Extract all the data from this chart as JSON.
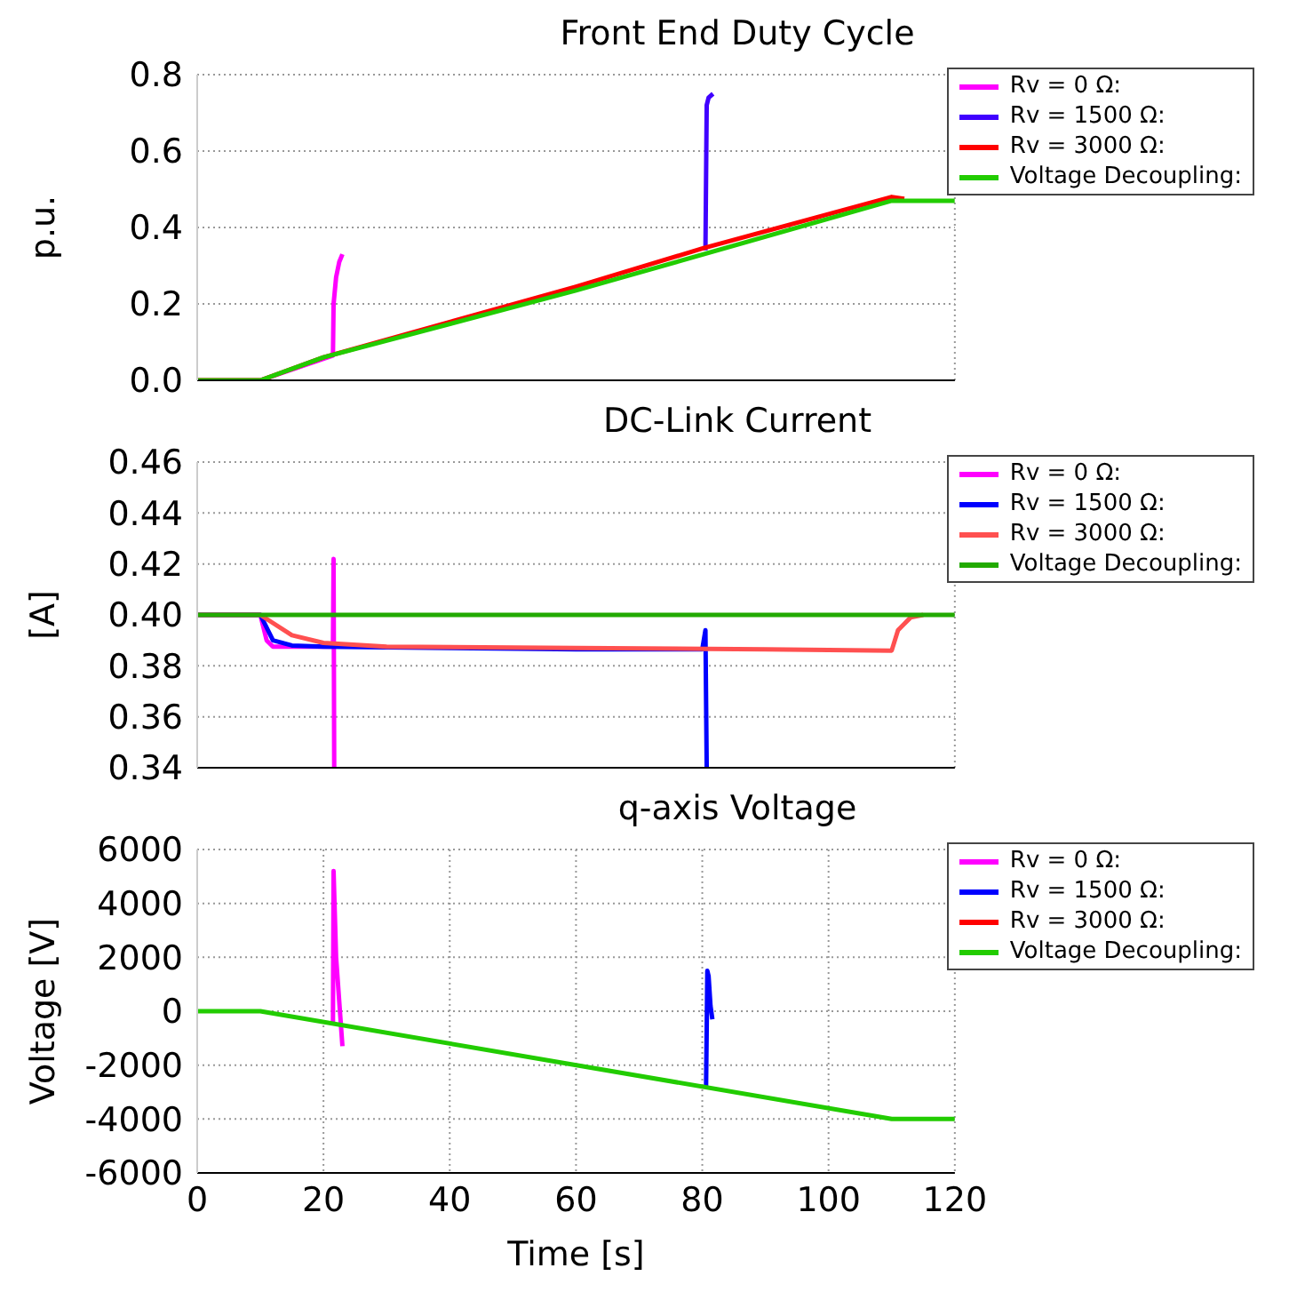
{
  "chart_data": [
    {
      "type": "line",
      "title": "Front End Duty Cycle",
      "ylabel": "p.u.",
      "xlim": [
        0,
        120
      ],
      "xticks": [
        0,
        20,
        40,
        60,
        80,
        100,
        120
      ],
      "ylim": [
        0,
        0.8
      ],
      "yticks": [
        {
          "value": 0,
          "label": "0.0"
        },
        {
          "value": 0.2,
          "label": "0.2"
        },
        {
          "value": 0.4,
          "label": "0.4"
        },
        {
          "value": 0.6,
          "label": "0.6"
        },
        {
          "value": 0.8,
          "label": "0.8"
        }
      ],
      "tick_labels": "y",
      "grid": true,
      "legend": "top right",
      "line_style": "solid",
      "marker": "none",
      "series": [
        {
          "name": "Rv = 0 Ω:",
          "color": "#ff00ff",
          "x": [
            0,
            10,
            21.5,
            21.6,
            22,
            22.5,
            23
          ],
          "values": [
            0,
            0,
            0.065,
            0.2,
            0.27,
            0.31,
            0.33
          ]
        },
        {
          "name": "Rv = 1500 Ω:",
          "color": "#4000ff",
          "x": [
            80.5,
            80.7,
            81,
            81.7
          ],
          "values": [
            0.34,
            0.72,
            0.74,
            0.75
          ]
        },
        {
          "name": "Rv = 3000 Ω:",
          "color": "#ff0000",
          "x": [
            0,
            10,
            20,
            60,
            80,
            110,
            112
          ],
          "values": [
            0,
            0,
            0.06,
            0.245,
            0.345,
            0.48,
            0.475
          ]
        },
        {
          "name": "Voltage Decoupling:",
          "color": "#22cc00",
          "x": [
            0,
            10,
            20,
            60,
            110,
            120
          ],
          "values": [
            0,
            0,
            0.06,
            0.235,
            0.47,
            0.47
          ]
        }
      ]
    },
    {
      "type": "line",
      "title": "DC-Link Current",
      "ylabel": "[A]",
      "xlim": [
        0,
        120
      ],
      "xticks": [
        0,
        20,
        40,
        60,
        80,
        100,
        120
      ],
      "ylim": [
        0.34,
        0.46
      ],
      "yticks": [
        0.34,
        0.36,
        0.38,
        {
          "value": 0.4,
          "label": "0.40"
        },
        0.42,
        0.44,
        0.46
      ],
      "tick_labels": "y",
      "grid": true,
      "legend": "top right",
      "line_style": "solid",
      "marker": "none",
      "series": [
        {
          "name": "Rv = 0 Ω:",
          "color": "#ff00ff",
          "x": [
            0,
            10,
            11,
            12,
            15,
            20,
            21.5,
            21.6,
            21.7
          ],
          "values": [
            0.4,
            0.4,
            0.39,
            0.3875,
            0.3875,
            0.3875,
            0.3875,
            0.422,
            0.34
          ]
        },
        {
          "name": "Rv = 1500 Ω:",
          "color": "#0000ff",
          "x": [
            0,
            10,
            12,
            15,
            20,
            40,
            60,
            80,
            80.5,
            80.7,
            80.9
          ],
          "values": [
            0.4,
            0.4,
            0.39,
            0.388,
            0.3875,
            0.387,
            0.3865,
            0.3865,
            0.394,
            0.34,
            0.34
          ]
        },
        {
          "name": "Rv = 3000 Ω:",
          "color": "#ff5050",
          "x": [
            0,
            10,
            15,
            20,
            30,
            60,
            90,
            110,
            111,
            113,
            115
          ],
          "values": [
            0.4,
            0.4,
            0.392,
            0.389,
            0.3875,
            0.387,
            0.3865,
            0.386,
            0.394,
            0.399,
            0.4
          ]
        },
        {
          "name": "Voltage Decoupling:",
          "color": "#22aa00",
          "x": [
            0,
            120
          ],
          "values": [
            0.4,
            0.4
          ]
        }
      ]
    },
    {
      "type": "line",
      "title": "q-axis Voltage",
      "ylabel": "Voltage [V]",
      "xlabel": "Time [s]",
      "xlim": [
        0,
        120
      ],
      "xticks": [
        0,
        20,
        40,
        60,
        80,
        100,
        120
      ],
      "ylim": [
        -6000,
        6000
      ],
      "yticks": [
        -6000,
        -4000,
        -2000,
        0,
        2000,
        4000,
        6000
      ],
      "grid": true,
      "legend": "top right",
      "line_style": "solid",
      "marker": "none",
      "series": [
        {
          "name": "Rv = 0 Ω:",
          "color": "#ff00ff",
          "x": [
            21.5,
            21.6,
            22,
            23
          ],
          "values": [
            -400,
            5200,
            2000,
            -1300
          ]
        },
        {
          "name": "Rv = 1500 Ω:",
          "color": "#0000ff",
          "x": [
            80.5,
            80.6,
            80.8,
            81,
            81.3,
            81.6
          ],
          "values": [
            -2800,
            -2800,
            1500,
            1300,
            200,
            -300
          ]
        },
        {
          "name": "Rv = 3000 Ω:",
          "color": "#ff0000"
        },
        {
          "name": "Voltage Decoupling:",
          "color": "#22cc00",
          "x": [
            0,
            10,
            110,
            120
          ],
          "values": [
            0,
            0,
            -4000,
            -4000
          ]
        }
      ]
    }
  ]
}
